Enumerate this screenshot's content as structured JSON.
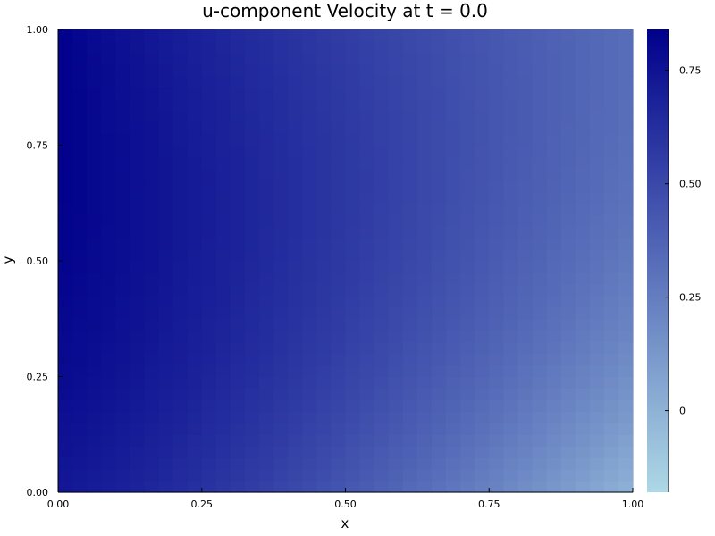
{
  "chart_data": {
    "type": "heatmap",
    "title": "u-component Velocity at t = 0.0",
    "xlabel": "x",
    "ylabel": "y",
    "xlim": [
      0.0,
      1.0
    ],
    "ylim": [
      0.0,
      1.0
    ],
    "x_ticks": [
      0.0,
      0.25,
      0.5,
      0.75,
      1.0
    ],
    "x_tick_labels": [
      "0.00",
      "0.25",
      "0.50",
      "0.75",
      "1.00"
    ],
    "y_ticks": [
      0.0,
      0.25,
      0.5,
      0.75,
      1.0
    ],
    "y_tick_labels": [
      "0.00",
      "0.25",
      "0.50",
      "0.75",
      "1.00"
    ],
    "grid": false,
    "grid_resolution": [
      40,
      40
    ],
    "field": "u(x,y) ≈ 0.84 - 0.52*x^(0.85+0.6*(1-y)) - 0.22*(1-y)^2.5*(0.5+x)",
    "colorbar": {
      "min": -0.18,
      "max": 0.84,
      "ticks": [
        0.0,
        0.25,
        0.5,
        0.75
      ],
      "tick_labels": [
        "0",
        "0.25",
        "0.50",
        "0.75"
      ],
      "colormap_low": "#add8e6",
      "colormap_high": "#00008b"
    }
  }
}
